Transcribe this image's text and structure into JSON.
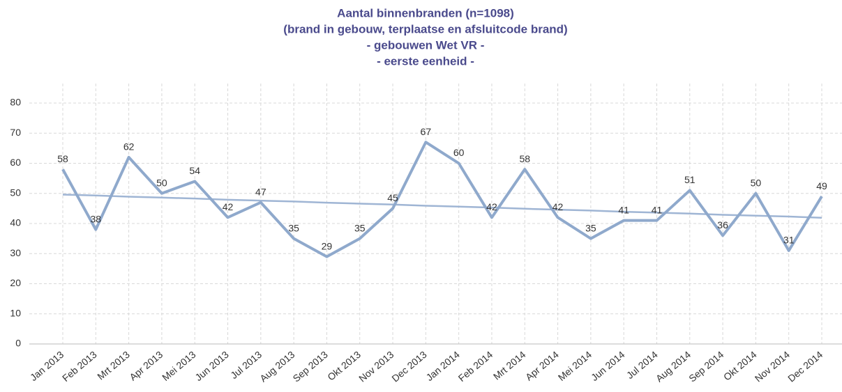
{
  "chart_data": {
    "type": "line",
    "title": [
      "Aantal binnenbranden (n=1098)",
      "(brand in gebouw, terplaatse en afsluitcode brand)",
      "- gebouwen Wet VR -",
      "- eerste eenheid -"
    ],
    "categories": [
      "Jan 2013",
      "Feb 2013",
      "Mrt 2013",
      "Apr 2013",
      "Mei 2013",
      "Jun 2013",
      "Jul 2013",
      "Aug 2013",
      "Sep 2013",
      "Okt 2013",
      "Nov 2013",
      "Dec 2013",
      "Jan 2014",
      "Feb 2014",
      "Mrt 2014",
      "Apr 2014",
      "Mei 2014",
      "Jun 2014",
      "Jul 2014",
      "Aug 2014",
      "Sep 2014",
      "Okt 2014",
      "Nov 2014",
      "Dec 2014"
    ],
    "series": [
      {
        "color": "#8fa9cc",
        "values": [
          58,
          38,
          62,
          50,
          54,
          42,
          47,
          35,
          29,
          35,
          45,
          67,
          60,
          42,
          58,
          42,
          35,
          41,
          41,
          51,
          36,
          50,
          31,
          49
        ]
      },
      {
        "color": "#9fb5d4",
        "values": [
          49.6,
          49.3,
          48.9,
          48.6,
          48.3,
          47.9,
          47.6,
          47.3,
          46.9,
          46.6,
          46.3,
          45.9,
          45.6,
          45.3,
          44.9,
          44.6,
          44.3,
          43.9,
          43.6,
          43.3,
          42.9,
          42.6,
          42.3,
          41.9
        ]
      }
    ],
    "ylim": [
      0,
      80
    ],
    "yticks": [
      0,
      10,
      20,
      30,
      40,
      50,
      60,
      70,
      80
    ],
    "grid": true
  }
}
